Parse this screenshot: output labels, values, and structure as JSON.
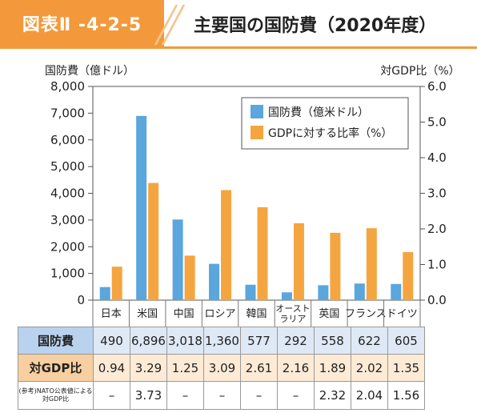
{
  "header": {
    "tag": "図表Ⅱ -4-2-5",
    "title": "主要国の国防費（2020年度）"
  },
  "colors": {
    "accent": "#f3993c",
    "series1": "#5aa6dd",
    "series2": "#f5a53f"
  },
  "chart_data": {
    "type": "bar",
    "categories": [
      "日本",
      "米国",
      "中国",
      "ロシア",
      "韓国",
      "オースト\nラリア",
      "英国",
      "フランス",
      "ドイツ"
    ],
    "series": [
      {
        "name": "国防費（億米ドル）",
        "axis": "left",
        "values": [
          490,
          6896,
          3018,
          1360,
          577,
          292,
          558,
          622,
          605
        ]
      },
      {
        "name": "GDPに対する比率（%）",
        "axis": "right",
        "values": [
          0.94,
          3.29,
          1.25,
          3.09,
          2.61,
          2.16,
          1.89,
          2.02,
          1.35
        ]
      }
    ],
    "ylabel": "国防費（億ドル）",
    "y2label": "対GDP比（%）",
    "ylim": [
      0,
      8000
    ],
    "y2lim": [
      0,
      6.0
    ],
    "yticks": [
      "0",
      "1,000",
      "2,000",
      "3,000",
      "4,000",
      "5,000",
      "6,000",
      "7,000",
      "8,000"
    ],
    "y2ticks": [
      "0.0",
      "1.0",
      "2.0",
      "3.0",
      "4.0",
      "5.0",
      "6.0"
    ],
    "legend_position": "top-right",
    "grid": false
  },
  "table": {
    "rows": [
      {
        "label": "国防費",
        "cells": [
          "490",
          "6,896",
          "3,018",
          "1,360",
          "577",
          "292",
          "558",
          "622",
          "605"
        ]
      },
      {
        "label": "対GDP比",
        "cells": [
          "0.94",
          "3.29",
          "1.25",
          "3.09",
          "2.61",
          "2.16",
          "1.89",
          "2.02",
          "1.35"
        ]
      },
      {
        "label": "(参考)NATO公表値による対GDP比",
        "cells": [
          "–",
          "3.73",
          "–",
          "–",
          "–",
          "–",
          "2.32",
          "2.04",
          "1.56"
        ]
      }
    ]
  }
}
